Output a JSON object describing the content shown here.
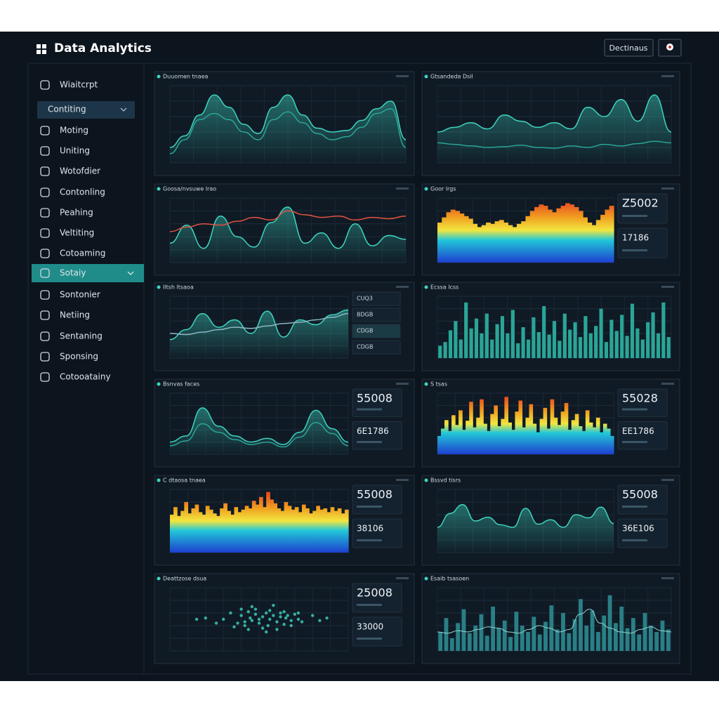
{
  "header": {
    "title": "Data Analytics",
    "button": "Dectinaus"
  },
  "sidebar": {
    "items": [
      "Wiaitcrpt",
      "Contiting",
      "Moting",
      "Uniting",
      "Wotofdier",
      "Contonling",
      "Peahing",
      "Veltiting",
      "Cotoaming",
      "Sotaiy",
      "Sontonier",
      "Netiing",
      "Sentaning",
      "Sponsing",
      "Cotooatainy"
    ],
    "selected": 1,
    "active": 9
  },
  "panels": [
    {
      "title": "Duuomen tnaea",
      "chart_data": {
        "type": "area",
        "ylim": [
          0,
          100
        ],
        "series": [
          {
            "color": "#3fd4c0",
            "values": [
              20,
              35,
              62,
              88,
              72,
              50,
              38,
              72,
              88,
              62,
              45,
              40,
              42,
              55,
              70,
              80,
              30
            ]
          },
          {
            "color": "#2aa597",
            "values": [
              12,
              30,
              56,
              64,
              56,
              40,
              30,
              56,
              66,
              52,
              38,
              30,
              34,
              46,
              64,
              70,
              20
            ]
          }
        ]
      }
    },
    {
      "title": "Gtsandeda Dsil",
      "chart_data": {
        "type": "area",
        "ylim": [
          0,
          100
        ],
        "series": [
          {
            "color": "#3fd4c0",
            "values": [
              40,
              46,
              52,
              44,
              62,
              54,
              46,
              52,
              44,
              72,
              60,
              82,
              54,
              88,
              40
            ]
          },
          {
            "color": "#2aa597",
            "values": [
              26,
              24,
              22,
              20,
              21,
              23,
              20,
              19,
              22,
              20,
              24,
              22,
              25,
              28,
              26
            ]
          }
        ]
      }
    },
    {
      "title": "Goosa/nvsuwe lrao",
      "chart_data": {
        "type": "area",
        "ylim": [
          0,
          100
        ],
        "series": [
          {
            "color": "#3fd4c0",
            "values": [
              30,
              58,
              22,
              72,
              40,
              24,
              62,
              86,
              30,
              46,
              22,
              60,
              26,
              42,
              36
            ]
          },
          {
            "color": "#e0523f",
            "values": [
              48,
              55,
              60,
              58,
              64,
              70,
              66,
              80,
              74,
              70,
              72,
              66,
              70,
              68,
              72
            ]
          }
        ]
      }
    },
    {
      "title": "Goor lrgs",
      "chart_data": {
        "type": "heatmap",
        "ylim": [
          0,
          100
        ],
        "values": [
          62,
          70,
          78,
          82,
          80,
          76,
          72,
          68,
          60,
          55,
          58,
          62,
          60,
          64,
          66,
          62,
          58,
          55,
          60,
          64,
          72,
          80,
          86,
          90,
          88,
          82,
          78,
          84,
          88,
          92,
          90,
          86,
          80,
          70,
          62,
          58,
          66,
          74,
          82,
          88
        ]
      },
      "stats": [
        "Z5002",
        "17186"
      ]
    },
    {
      "title": "Iltsh ltsaoa",
      "chart_data": {
        "type": "area",
        "ylim": [
          0,
          100
        ],
        "series": [
          {
            "color": "#3fd4c0",
            "values": [
              30,
              46,
              72,
              50,
              62,
              40,
              76,
              34,
              62,
              54,
              70,
              78
            ]
          },
          {
            "color": "#8fb8c8",
            "values": [
              40,
              38,
              42,
              46,
              50,
              48,
              52,
              56,
              58,
              62,
              66,
              72
            ]
          }
        ]
      },
      "list": [
        "CUQ3",
        "BDGB",
        "CDGB",
        "CDGB"
      ]
    },
    {
      "title": "Ecssa lcss",
      "chart_data": {
        "type": "bar",
        "ylim": [
          0,
          100
        ],
        "color": "#2aa597",
        "values": [
          20,
          26,
          45,
          60,
          30,
          90,
          48,
          64,
          40,
          72,
          30,
          55,
          68,
          40,
          78,
          24,
          50,
          30,
          66,
          42,
          84,
          38,
          60,
          28,
          72,
          46,
          58,
          34,
          68,
          40,
          52,
          80,
          26,
          62,
          44,
          70,
          36,
          88,
          48,
          30,
          58,
          74,
          40,
          90,
          34
        ]
      }
    },
    {
      "title": "Bsnvas faces",
      "chart_data": {
        "type": "area",
        "ylim": [
          0,
          100
        ],
        "series": [
          {
            "color": "#3fd4c0",
            "values": [
              20,
              30,
              76,
              46,
              30,
              20,
              26,
              16,
              36,
              72,
              42,
              20
            ]
          },
          {
            "color": "#2aa597",
            "values": [
              14,
              22,
              50,
              36,
              24,
              16,
              20,
              12,
              28,
              52,
              34,
              14
            ]
          }
        ]
      },
      "stats": [
        "55008",
        "6E1786"
      ]
    },
    {
      "title": "S tsas",
      "chart_data": {
        "type": "heatmap",
        "ylim": [
          0,
          100
        ],
        "values": [
          30,
          42,
          56,
          38,
          64,
          48,
          72,
          40,
          55,
          86,
          44,
          60,
          90,
          50,
          38,
          66,
          80,
          46,
          58,
          94,
          52,
          40,
          70,
          88,
          44,
          60,
          82,
          50,
          36,
          58,
          76,
          42,
          90,
          60,
          48,
          70,
          84,
          40,
          56,
          66,
          46,
          38,
          72,
          52,
          44,
          60,
          36,
          50,
          42,
          30
        ]
      },
      "stats": [
        "55028",
        "EE1786"
      ]
    },
    {
      "title": "C dtaosa tnaea",
      "chart_data": {
        "type": "heatmap",
        "ylim": [
          0,
          100
        ],
        "values": [
          60,
          72,
          58,
          66,
          80,
          62,
          70,
          76,
          64,
          60,
          74,
          68,
          62,
          58,
          70,
          78,
          66,
          60,
          72,
          64,
          68,
          74,
          70,
          82,
          76,
          88,
          72,
          96,
          84,
          78,
          70,
          66,
          80,
          74,
          68,
          72,
          64,
          76,
          70,
          62,
          66,
          74,
          68,
          70,
          64,
          72,
          66,
          70,
          62,
          68
        ]
      },
      "stats": [
        "55008",
        "38106"
      ]
    },
    {
      "title": "Bssvd tisrs",
      "chart_data": {
        "type": "area",
        "ylim": [
          0,
          100
        ],
        "series": [
          {
            "color": "#3fd4c0",
            "values": [
              40,
              62,
              76,
              50,
              56,
              44,
              40,
              70,
              45,
              52,
              40,
              60,
              55,
              72,
              46
            ]
          }
        ]
      },
      "stats": [
        "55008",
        "36E106"
      ]
    },
    {
      "title": "Deattzose dsua",
      "chart_data": {
        "type": "scatter",
        "ylim": [
          0,
          100
        ],
        "xlim": [
          0,
          100
        ],
        "color": "#3fd4c0",
        "x": [
          30,
          34,
          38,
          40,
          42,
          44,
          45,
          46,
          48,
          50,
          52,
          54,
          55,
          56,
          58,
          60,
          62,
          64,
          65,
          66,
          68,
          70,
          72,
          74,
          36,
          40,
          44,
          48,
          52,
          56,
          60,
          64,
          68,
          72,
          50,
          46,
          54,
          58,
          42,
          62,
          20,
          26,
          80,
          84,
          88,
          15
        ],
        "values": [
          50,
          60,
          44,
          56,
          40,
          62,
          52,
          48,
          58,
          44,
          54,
          60,
          40,
          50,
          56,
          46,
          60,
          42,
          52,
          56,
          48,
          58,
          50,
          46,
          38,
          66,
          34,
          66,
          36,
          64,
          34,
          62,
          40,
          60,
          50,
          70,
          30,
          72,
          46,
          54,
          52,
          44,
          56,
          48,
          52,
          50
        ]
      },
      "stats": [
        "25008",
        "33000"
      ]
    },
    {
      "title": "Esaib tsasoen",
      "chart_data": {
        "type": "bar",
        "ylim": [
          0,
          100
        ],
        "color": "#2a7f86",
        "values": [
          30,
          52,
          20,
          44,
          66,
          28,
          40,
          58,
          24,
          70,
          36,
          48,
          22,
          62,
          40,
          30,
          54,
          26,
          46,
          72,
          34,
          60,
          28,
          50,
          82,
          40,
          64,
          30,
          56,
          88,
          44,
          70,
          36,
          52,
          26,
          60,
          40,
          30,
          48,
          34
        ],
        "line": [
          30,
          28,
          32,
          30,
          34,
          38,
          36,
          30,
          28,
          34,
          40,
          36,
          30,
          34,
          58,
          66,
          44,
          36,
          30,
          28,
          34,
          38,
          32,
          30
        ]
      }
    }
  ]
}
